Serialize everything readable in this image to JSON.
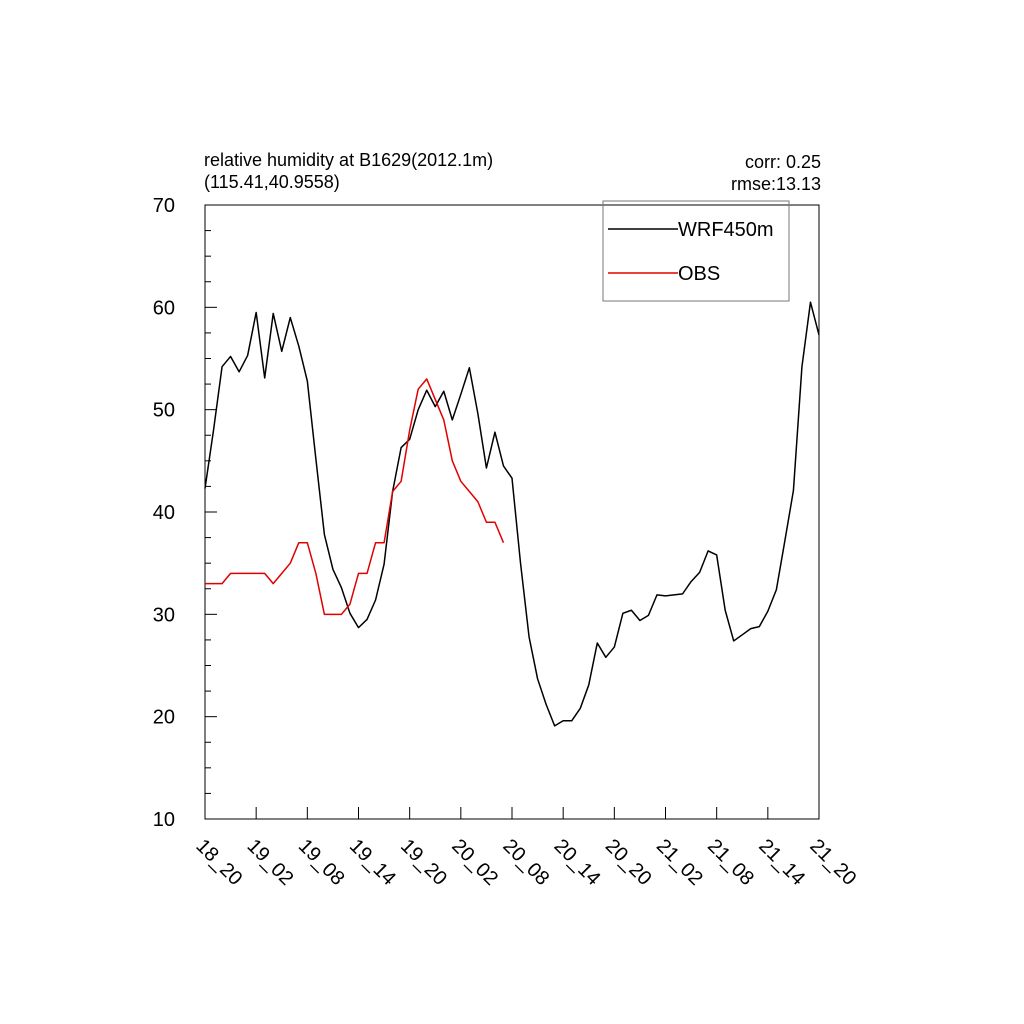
{
  "chart_data": {
    "type": "line",
    "title_lines": [
      "relative humidity at B1629(2012.1m)",
      "(115.41,40.9558)"
    ],
    "stats": {
      "corr": "corr:  0.25",
      "rmse": "rmse:13.13"
    },
    "x_tick_labels": [
      "18_20",
      "19_02",
      "19_08",
      "19_14",
      "19_20",
      "20_02",
      "20_08",
      "20_14",
      "20_20",
      "21_02",
      "21_08",
      "21_14",
      "21_20"
    ],
    "x_step_hours": 1,
    "x_range": [
      0,
      72
    ],
    "ylim": [
      10,
      70
    ],
    "y_major_ticks": [
      10,
      20,
      30,
      40,
      50,
      60,
      70
    ],
    "y_minor_step": 2.5,
    "legend_position": "top-right",
    "series": [
      {
        "name": "WRF450m",
        "color": "#000000",
        "values": [
          42.3,
          48.0,
          54.2,
          55.2,
          53.7,
          55.3,
          59.5,
          53.1,
          59.4,
          55.7,
          59.0,
          56.2,
          52.8,
          45.2,
          37.8,
          34.4,
          32.6,
          30.1,
          28.7,
          29.5,
          31.4,
          34.9,
          42.0,
          46.3,
          47.1,
          50.0,
          51.9,
          50.3,
          51.8,
          49.0,
          51.5,
          54.1,
          49.6,
          44.3,
          47.8,
          44.5,
          43.3,
          35.0,
          27.8,
          23.7,
          21.2,
          19.1,
          19.6,
          19.6,
          20.8,
          23.1,
          27.2,
          25.8,
          26.8,
          30.1,
          30.4,
          29.4,
          29.9,
          31.9,
          31.8,
          31.9,
          32.0,
          33.2,
          34.1,
          36.2,
          35.8,
          30.4,
          27.4,
          28.0,
          28.6,
          28.8,
          30.3,
          32.4,
          37.2,
          42.1,
          54.2,
          60.5,
          57.3
        ]
      },
      {
        "name": "OBS",
        "color": "#e00000",
        "values": [
          33.0,
          33.0,
          33.0,
          34.0,
          34.0,
          34.0,
          34.0,
          34.0,
          33.0,
          34.0,
          35.0,
          37.0,
          37.0,
          34.0,
          30.0,
          30.0,
          30.0,
          31.0,
          34.0,
          34.0,
          37.0,
          37.0,
          42.0,
          43.0,
          48.0,
          52.0,
          53.0,
          51.0,
          49.0,
          45.0,
          43.0,
          42.0,
          41.0,
          39.0,
          39.0,
          37.0
        ]
      }
    ]
  }
}
